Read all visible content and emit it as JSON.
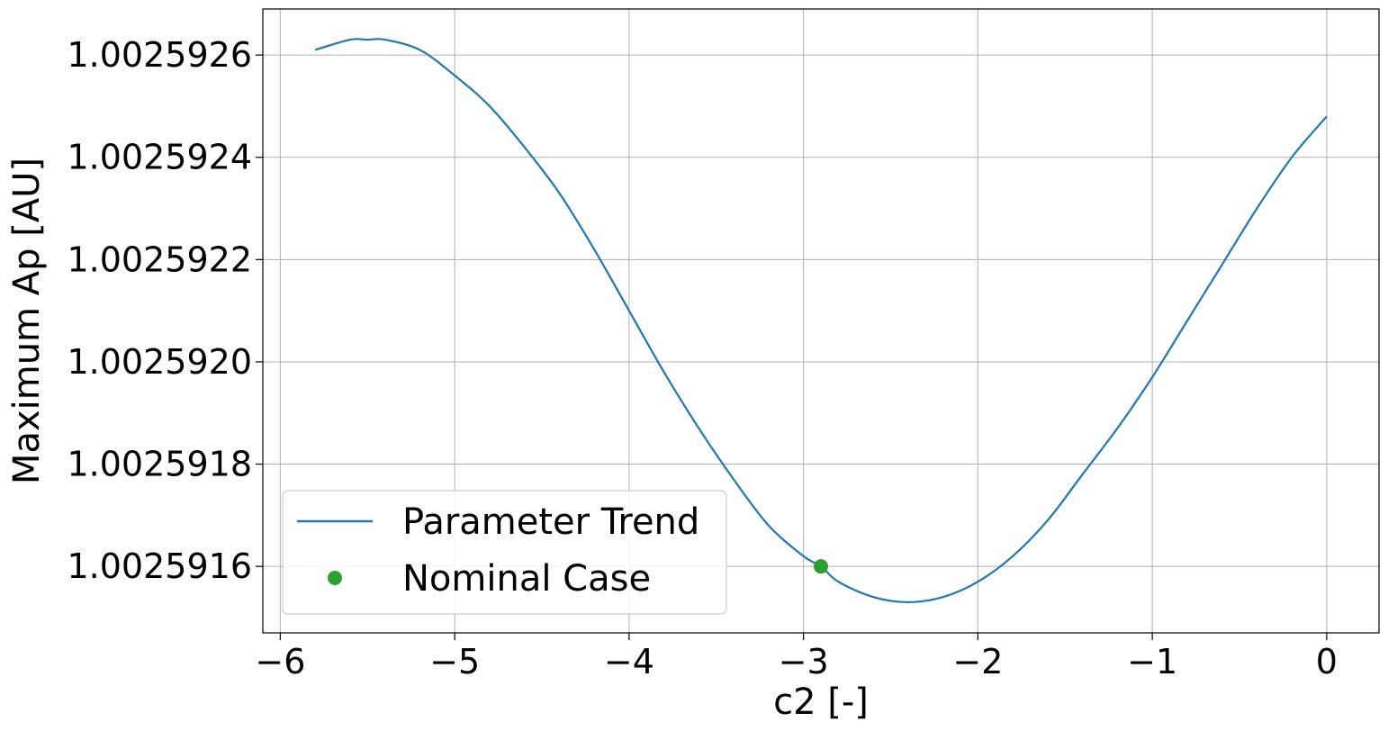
{
  "chart_data": {
    "type": "line",
    "title": "",
    "xlabel": "c2 [-]",
    "ylabel": "Maximum Ap [AU]",
    "xlim": [
      -6.1,
      0.3
    ],
    "ylim": [
      1.00259147,
      1.00259269
    ],
    "xticks": [
      {
        "value": -6,
        "label": "−6"
      },
      {
        "value": -5,
        "label": "−5"
      },
      {
        "value": -4,
        "label": "−4"
      },
      {
        "value": -3,
        "label": "−3"
      },
      {
        "value": -2,
        "label": "−2"
      },
      {
        "value": -1,
        "label": "−1"
      },
      {
        "value": 0,
        "label": "0"
      }
    ],
    "yticks": [
      {
        "value": 1.0025916,
        "label": "1.0025916"
      },
      {
        "value": 1.0025918,
        "label": "1.0025918"
      },
      {
        "value": 1.002592,
        "label": "1.0025920"
      },
      {
        "value": 1.0025922,
        "label": "1.0025922"
      },
      {
        "value": 1.0025924,
        "label": "1.0025924"
      },
      {
        "value": 1.0025926,
        "label": "1.0025926"
      }
    ],
    "grid": true,
    "legend_position": "lower-left",
    "series": [
      {
        "name": "Parameter Trend",
        "kind": "line",
        "color": "#1f77b4",
        "x": [
          -5.8,
          -5.6,
          -5.5,
          -5.4,
          -5.2,
          -5.0,
          -4.8,
          -4.6,
          -4.4,
          -4.2,
          -4.0,
          -3.8,
          -3.6,
          -3.4,
          -3.2,
          -3.0,
          -2.9,
          -2.8,
          -2.6,
          -2.4,
          -2.2,
          -2.0,
          -1.8,
          -1.6,
          -1.4,
          -1.2,
          -1.0,
          -0.8,
          -0.6,
          -0.4,
          -0.2,
          0.0
        ],
        "y": [
          1.00259261,
          1.00259263,
          1.00259263,
          1.00259263,
          1.00259261,
          1.00259256,
          1.0025925,
          1.00259242,
          1.00259233,
          1.00259222,
          1.0025921,
          1.00259198,
          1.00259187,
          1.00259177,
          1.00259168,
          1.00259162,
          1.0025916,
          1.00259157,
          1.00259154,
          1.00259153,
          1.00259154,
          1.00259157,
          1.00259162,
          1.00259169,
          1.00259178,
          1.00259187,
          1.00259197,
          1.00259208,
          1.00259219,
          1.0025923,
          1.0025924,
          1.00259248
        ]
      },
      {
        "name": "Nominal Case",
        "kind": "point",
        "color": "#2ca02c",
        "x": [
          -2.9
        ],
        "y": [
          1.0025916
        ]
      }
    ]
  }
}
